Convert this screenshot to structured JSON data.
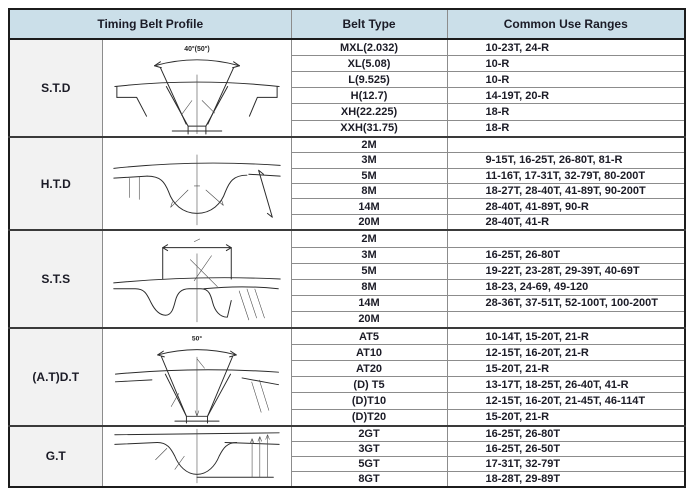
{
  "header": {
    "col_profile": "Timing Belt Profile",
    "col_belt_type": "Belt Type",
    "col_ranges": "Common Use Ranges"
  },
  "colors": {
    "header_bg": "#cbdfe9",
    "label_bg": "#f2f2f2",
    "grid_line": "#8c8c8c",
    "section_line": "#3a3a3a",
    "outer_border": "#1c1c1c",
    "text": "#1b1b26"
  },
  "sections": [
    {
      "id": "std",
      "label": "S.T.D",
      "drawing": "trapezoidal-tooth-profile",
      "angle_label": "40°(50°)",
      "rows": [
        {
          "belt_type": "MXL(2.032)",
          "ranges": "10-23T, 24-R"
        },
        {
          "belt_type": "XL(5.08)",
          "ranges": "10-R"
        },
        {
          "belt_type": "L(9.525)",
          "ranges": "10-R"
        },
        {
          "belt_type": "H(12.7)",
          "ranges": "14-19T, 20-R"
        },
        {
          "belt_type": "XH(22.225)",
          "ranges": "18-R"
        },
        {
          "belt_type": "XXH(31.75)",
          "ranges": "18-R"
        }
      ]
    },
    {
      "id": "htd",
      "label": "H.T.D",
      "drawing": "rounded-tooth-profile",
      "angle_label": "",
      "rows": [
        {
          "belt_type": "2M",
          "ranges": ""
        },
        {
          "belt_type": "3M",
          "ranges": "9-15T, 16-25T, 26-80T, 81-R"
        },
        {
          "belt_type": "5M",
          "ranges": "11-16T, 17-31T, 32-79T, 80-200T"
        },
        {
          "belt_type": "8M",
          "ranges": "18-27T, 28-40T, 41-89T, 90-200T"
        },
        {
          "belt_type": "14M",
          "ranges": "28-40T, 41-89T, 90-R"
        },
        {
          "belt_type": "20M",
          "ranges": "28-40T, 41-R"
        }
      ]
    },
    {
      "id": "sts",
      "label": "S.T.S",
      "drawing": "curvilinear-tooth-profile",
      "angle_label": "",
      "rows": [
        {
          "belt_type": "2M",
          "ranges": ""
        },
        {
          "belt_type": "3M",
          "ranges": "16-25T, 26-80T"
        },
        {
          "belt_type": "5M",
          "ranges": "19-22T, 23-28T, 29-39T, 40-69T"
        },
        {
          "belt_type": "8M",
          "ranges": "18-23, 24-69, 49-120"
        },
        {
          "belt_type": "14M",
          "ranges": "28-36T, 37-51T, 52-100T, 100-200T"
        },
        {
          "belt_type": "20M",
          "ranges": ""
        }
      ]
    },
    {
      "id": "atdt",
      "label": "(A.T)D.T",
      "drawing": "trapezoidal-50deg-tooth-profile",
      "angle_label": "50°",
      "rows": [
        {
          "belt_type": "AT5",
          "ranges": "10-14T, 15-20T, 21-R"
        },
        {
          "belt_type": "AT10",
          "ranges": "12-15T, 16-20T, 21-R"
        },
        {
          "belt_type": "AT20",
          "ranges": "15-20T, 21-R"
        },
        {
          "belt_type": "(D) T5",
          "ranges": "13-17T, 18-25T, 26-40T, 41-R"
        },
        {
          "belt_type": "(D)T10",
          "ranges": "12-15T, 16-20T, 21-45T, 46-114T"
        },
        {
          "belt_type": "(D)T20",
          "ranges": "15-20T, 21-R"
        }
      ]
    },
    {
      "id": "gt",
      "label": "G.T",
      "drawing": "deep-rounded-tooth-profile",
      "angle_label": "",
      "rows": [
        {
          "belt_type": "2GT",
          "ranges": "16-25T, 26-80T"
        },
        {
          "belt_type": "3GT",
          "ranges": "16-25T, 26-50T"
        },
        {
          "belt_type": "5GT",
          "ranges": "17-31T, 32-79T"
        },
        {
          "belt_type": "8GT",
          "ranges": "18-28T, 29-89T"
        }
      ]
    }
  ]
}
